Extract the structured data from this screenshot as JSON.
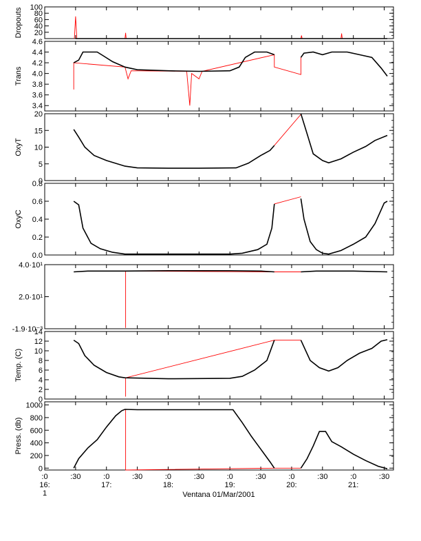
{
  "chart_data": {
    "type": "line",
    "xlabel": "Ventana 01/Mar/2001",
    "x_ticks": [
      {
        "x": 16.0,
        "line1": ":0",
        "line2": "16:",
        "line3": "1"
      },
      {
        "x": 16.5,
        "line1": ":30",
        "line2": "",
        "line3": ""
      },
      {
        "x": 17.0,
        "line1": ":0",
        "line2": "17:",
        "line3": ""
      },
      {
        "x": 17.5,
        "line1": ":30",
        "line2": "",
        "line3": ""
      },
      {
        "x": 18.0,
        "line1": ":0",
        "line2": "18:",
        "line3": ""
      },
      {
        "x": 18.5,
        "line1": ":30",
        "line2": "",
        "line3": ""
      },
      {
        "x": 19.0,
        "line1": ":0",
        "line2": "19:",
        "line3": ""
      },
      {
        "x": 19.5,
        "line1": ":30",
        "line2": "",
        "line3": ""
      },
      {
        "x": 20.0,
        "line1": ":0",
        "line2": "20:",
        "line3": ""
      },
      {
        "x": 20.5,
        "line1": ":30",
        "line2": "",
        "line3": ""
      },
      {
        "x": 21.0,
        "line1": ":0",
        "line2": "21:",
        "line3": ""
      },
      {
        "x": 21.5,
        "line1": ":30",
        "line2": "",
        "line3": ""
      }
    ],
    "xlim": [
      16.0,
      21.65
    ],
    "line_colors": {
      "measured": "#000000",
      "interpolated": "#ff0000"
    },
    "panels": [
      {
        "ylabel": "Dropouts",
        "ylim": [
          0,
          100
        ],
        "yticks": [
          20,
          40,
          60,
          80,
          100
        ],
        "ytick_labels": [
          "20",
          "40",
          "60",
          "80",
          "100"
        ],
        "black": [
          [
            16.5,
            0
          ],
          [
            21.55,
            0
          ]
        ],
        "red": [
          [
            16.48,
            0
          ],
          [
            16.5,
            70
          ],
          [
            16.52,
            0
          ],
          [
            17.3,
            0
          ],
          [
            17.31,
            18
          ],
          [
            17.32,
            0
          ],
          [
            20.15,
            0
          ],
          [
            20.16,
            10
          ],
          [
            20.17,
            0
          ],
          [
            20.8,
            0
          ],
          [
            20.81,
            16
          ],
          [
            20.82,
            0
          ]
        ]
      },
      {
        "ylabel": "Trans",
        "ylim": [
          3.3,
          4.6
        ],
        "yticks": [
          3.4,
          3.6,
          3.8,
          4.0,
          4.2,
          4.4,
          4.6
        ],
        "ytick_labels": [
          "3.4",
          "3.6",
          "3.8",
          "4.0",
          "4.2",
          "4.4",
          "4.6"
        ],
        "black": [
          [
            16.47,
            4.2
          ],
          [
            16.55,
            4.25
          ],
          [
            16.62,
            4.4
          ],
          [
            16.75,
            4.4
          ],
          [
            16.85,
            4.4
          ],
          [
            16.95,
            4.33
          ],
          [
            17.1,
            4.22
          ],
          [
            17.3,
            4.12
          ],
          [
            17.5,
            4.07
          ],
          [
            18.0,
            4.05
          ],
          [
            18.5,
            4.04
          ],
          [
            19.0,
            4.05
          ],
          [
            19.15,
            4.12
          ],
          [
            19.25,
            4.3
          ],
          [
            19.4,
            4.4
          ],
          [
            19.6,
            4.4
          ],
          [
            19.72,
            4.35
          ]
        ],
        "black2": [
          [
            20.15,
            4.3
          ],
          [
            20.2,
            4.38
          ],
          [
            20.35,
            4.4
          ],
          [
            20.5,
            4.35
          ],
          [
            20.65,
            4.4
          ],
          [
            20.9,
            4.4
          ],
          [
            21.1,
            4.35
          ],
          [
            21.3,
            4.3
          ],
          [
            21.45,
            4.1
          ],
          [
            21.55,
            3.95
          ]
        ],
        "red": [
          [
            16.47,
            3.7
          ],
          [
            16.47,
            4.2
          ],
          [
            17.3,
            4.12
          ],
          [
            17.35,
            3.9
          ],
          [
            17.4,
            4.05
          ],
          [
            18.3,
            4.04
          ],
          [
            18.35,
            3.4
          ],
          [
            18.38,
            4.0
          ],
          [
            18.5,
            3.9
          ],
          [
            18.55,
            4.04
          ],
          [
            19.72,
            4.35
          ],
          [
            19.72,
            4.12
          ],
          [
            20.15,
            3.98
          ],
          [
            20.15,
            4.3
          ]
        ]
      },
      {
        "ylabel": "OxyT",
        "ylim": [
          0,
          20
        ],
        "yticks": [
          0,
          5,
          10,
          15,
          20
        ],
        "ytick_labels": [
          "0",
          "5",
          "10",
          "15",
          "20"
        ],
        "black": [
          [
            16.47,
            15.3
          ],
          [
            16.55,
            13
          ],
          [
            16.65,
            10
          ],
          [
            16.8,
            7.5
          ],
          [
            17.0,
            6.0
          ],
          [
            17.3,
            4.3
          ],
          [
            17.5,
            3.8
          ],
          [
            18.0,
            3.7
          ],
          [
            18.5,
            3.7
          ],
          [
            19.1,
            3.8
          ],
          [
            19.3,
            5.2
          ],
          [
            19.5,
            7.5
          ],
          [
            19.65,
            9.0
          ],
          [
            19.72,
            10.5
          ]
        ],
        "black2": [
          [
            20.15,
            20
          ],
          [
            20.25,
            14
          ],
          [
            20.35,
            8
          ],
          [
            20.5,
            6.0
          ],
          [
            20.6,
            5.3
          ],
          [
            20.8,
            6.5
          ],
          [
            21.0,
            8.5
          ],
          [
            21.2,
            10.2
          ],
          [
            21.35,
            12
          ],
          [
            21.55,
            13.5
          ]
        ],
        "red": [
          [
            19.72,
            10.5
          ],
          [
            20.15,
            19.8
          ]
        ]
      },
      {
        "ylabel": "OxyC",
        "ylim": [
          0,
          0.8
        ],
        "yticks": [
          0,
          0.2,
          0.4,
          0.6,
          0.8
        ],
        "ytick_labels": [
          "0.0",
          "0.2",
          "0.4",
          "0.6",
          "0.8"
        ],
        "black": [
          [
            16.47,
            0.6
          ],
          [
            16.55,
            0.56
          ],
          [
            16.62,
            0.3
          ],
          [
            16.75,
            0.13
          ],
          [
            16.9,
            0.07
          ],
          [
            17.1,
            0.03
          ],
          [
            17.3,
            0.01
          ],
          [
            18.0,
            0.01
          ],
          [
            19.0,
            0.01
          ],
          [
            19.2,
            0.02
          ],
          [
            19.45,
            0.06
          ],
          [
            19.6,
            0.12
          ],
          [
            19.68,
            0.3
          ],
          [
            19.72,
            0.57
          ]
        ],
        "black2": [
          [
            20.15,
            0.63
          ],
          [
            20.2,
            0.4
          ],
          [
            20.3,
            0.15
          ],
          [
            20.4,
            0.06
          ],
          [
            20.5,
            0.02
          ],
          [
            20.6,
            0.01
          ],
          [
            20.8,
            0.05
          ],
          [
            21.0,
            0.12
          ],
          [
            21.2,
            0.2
          ],
          [
            21.35,
            0.35
          ],
          [
            21.5,
            0.58
          ],
          [
            21.55,
            0.6
          ]
        ],
        "red": [
          [
            19.72,
            0.57
          ],
          [
            20.15,
            0.65
          ]
        ]
      },
      {
        "ylabel": "",
        "ylim": [
          -0.0019,
          40
        ],
        "yticks": [
          -0.0019,
          20,
          40
        ],
        "ytick_labels": [
          "-1.9·10⁻³",
          "2.0·10¹",
          "4.0·10¹"
        ],
        "black": [
          [
            16.47,
            35.5
          ],
          [
            16.7,
            36
          ],
          [
            17.3,
            36
          ],
          [
            18.0,
            36.2
          ],
          [
            19.0,
            36.2
          ],
          [
            19.5,
            36
          ],
          [
            19.72,
            35.5
          ]
        ],
        "black2": [
          [
            20.15,
            35.5
          ],
          [
            20.4,
            36
          ],
          [
            21.0,
            36
          ],
          [
            21.55,
            35.5
          ]
        ],
        "red": [
          [
            17.31,
            36
          ],
          [
            17.31,
            0.5
          ],
          [
            17.31,
            36
          ],
          [
            19.72,
            35.5
          ],
          [
            20.15,
            35.5
          ]
        ]
      },
      {
        "ylabel": "Temp. (C)",
        "ylim": [
          0,
          14
        ],
        "yticks": [
          0,
          2,
          4,
          6,
          8,
          10,
          12,
          14
        ],
        "ytick_labels": [
          "0",
          "2",
          "4",
          "6",
          "8",
          "10",
          "12",
          "14"
        ],
        "black": [
          [
            16.47,
            12.2
          ],
          [
            16.55,
            11.5
          ],
          [
            16.65,
            9.0
          ],
          [
            16.8,
            7.0
          ],
          [
            17.0,
            5.5
          ],
          [
            17.2,
            4.6
          ],
          [
            17.3,
            4.4
          ],
          [
            18.0,
            4.2
          ],
          [
            19.0,
            4.3
          ],
          [
            19.2,
            4.7
          ],
          [
            19.4,
            6.0
          ],
          [
            19.6,
            8.0
          ],
          [
            19.72,
            12.2
          ]
        ],
        "black2": [
          [
            20.15,
            12.2
          ],
          [
            20.3,
            8.0
          ],
          [
            20.45,
            6.5
          ],
          [
            20.6,
            5.8
          ],
          [
            20.75,
            6.5
          ],
          [
            20.9,
            8.0
          ],
          [
            21.1,
            9.5
          ],
          [
            21.3,
            10.5
          ],
          [
            21.45,
            12.0
          ],
          [
            21.55,
            12.3
          ]
        ],
        "red": [
          [
            17.31,
            4.4
          ],
          [
            17.31,
            0.5
          ],
          [
            17.31,
            4.4
          ],
          [
            19.72,
            12.2
          ],
          [
            20.15,
            12.2
          ]
        ]
      },
      {
        "ylabel": "Press. (db)",
        "ylim": [
          -30,
          1050
        ],
        "yticks": [
          0,
          200,
          400,
          600,
          800,
          1000
        ],
        "ytick_labels": [
          "0",
          "200",
          "400",
          "600",
          "800",
          "1000"
        ],
        "black": [
          [
            16.47,
            0
          ],
          [
            16.55,
            150
          ],
          [
            16.7,
            320
          ],
          [
            16.85,
            450
          ],
          [
            17.0,
            650
          ],
          [
            17.15,
            830
          ],
          [
            17.25,
            910
          ],
          [
            17.3,
            930
          ],
          [
            17.5,
            925
          ],
          [
            18.0,
            925
          ],
          [
            18.5,
            925
          ],
          [
            19.05,
            925
          ],
          [
            19.2,
            720
          ],
          [
            19.35,
            500
          ],
          [
            19.5,
            300
          ],
          [
            19.65,
            100
          ],
          [
            19.72,
            0
          ]
        ],
        "black2": [
          [
            20.15,
            0
          ],
          [
            20.25,
            150
          ],
          [
            20.35,
            350
          ],
          [
            20.45,
            580
          ],
          [
            20.55,
            580
          ],
          [
            20.65,
            420
          ],
          [
            20.8,
            340
          ],
          [
            21.0,
            220
          ],
          [
            21.2,
            120
          ],
          [
            21.4,
            30
          ],
          [
            21.55,
            -10
          ]
        ],
        "red": [
          [
            17.31,
            930
          ],
          [
            17.31,
            -30
          ],
          [
            19.72,
            0
          ],
          [
            20.15,
            0
          ]
        ]
      }
    ]
  }
}
